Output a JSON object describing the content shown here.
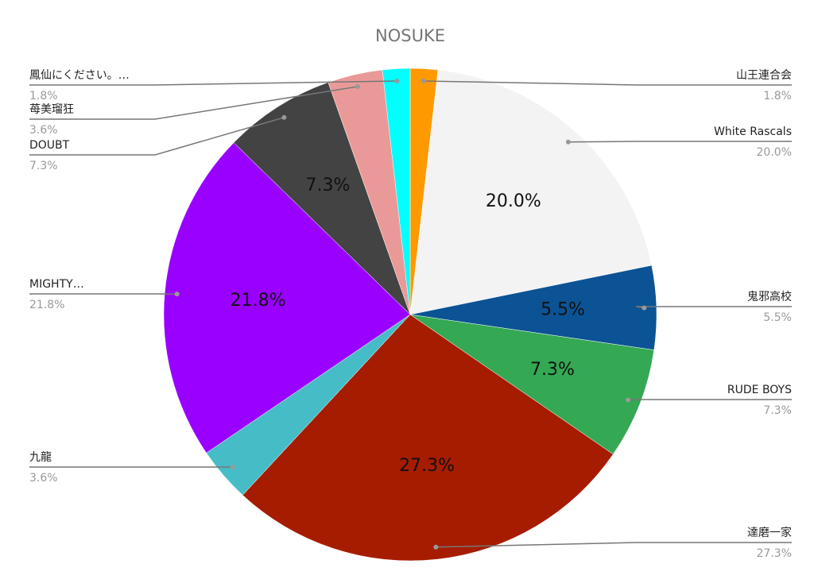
{
  "chart_data": {
    "type": "pie",
    "title": "NOSUKE",
    "categories": [
      "山王連合会",
      "White Rascals",
      "鬼邪高校",
      "RUDE BOYS",
      "達磨一家",
      "九龍",
      "MIGHTY…",
      "DOUBT",
      "苺美瑠狂",
      "鳳仙にください。…"
    ],
    "values": [
      1.8,
      20.0,
      5.5,
      7.3,
      27.3,
      3.6,
      21.8,
      7.3,
      3.6,
      1.8
    ],
    "value_labels": [
      "1.8%",
      "20.0%",
      "5.5%",
      "7.3%",
      "27.3%",
      "3.6%",
      "21.8%",
      "7.3%",
      "3.6%",
      "1.8%"
    ],
    "colors": [
      "#ff9900",
      "#f3f3f3",
      "#0b5394",
      "#34a853",
      "#a61c00",
      "#46bdc6",
      "#9900ff",
      "#434343",
      "#ea9999",
      "#00ffff"
    ]
  }
}
